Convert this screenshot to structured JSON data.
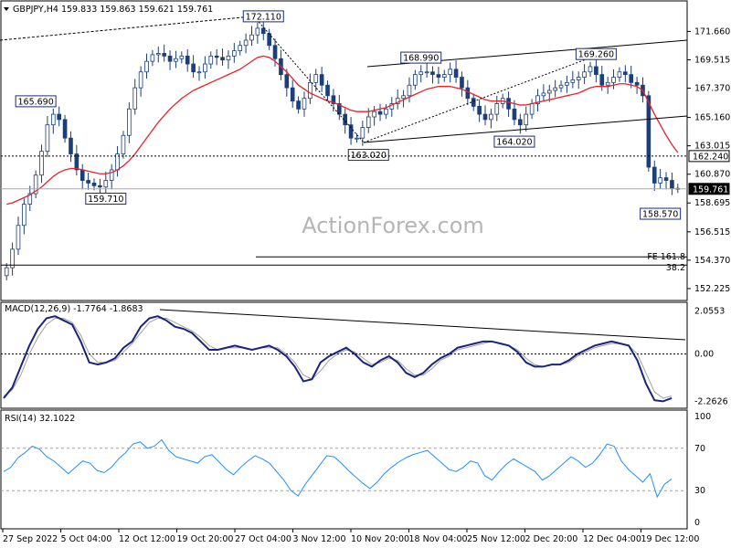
{
  "chart_data": [
    {
      "panel": "price",
      "type": "candlestick",
      "title": "GBPJPY,H4 159.833 159.863 159.621 159.761",
      "symbol": "GBPJPY",
      "timeframe": "H4",
      "ohlc_header": "159.833 159.863 159.621 159.761",
      "y_ticks": [
        "171.660",
        "169.515",
        "167.370",
        "165.160",
        "163.015",
        "160.870",
        "158.695",
        "156.515",
        "154.370",
        "152.225"
      ],
      "ylim": [
        151.6,
        173.0
      ],
      "current_price": "159.761",
      "level_162": "162.240",
      "pivot_labels": [
        {
          "text": "172.110",
          "x": 44,
          "y": 172.11
        },
        {
          "text": "165.690",
          "x": 5,
          "y": 165.69
        },
        {
          "text": "159.710",
          "x": 17,
          "y": 159.71
        },
        {
          "text": "163.020",
          "x": 62,
          "y": 163.02
        },
        {
          "text": "168.990",
          "x": 71,
          "y": 168.99
        },
        {
          "text": "164.020",
          "x": 87,
          "y": 164.02
        },
        {
          "text": "169.260",
          "x": 101,
          "y": 169.26
        },
        {
          "text": "158.570",
          "x": 112,
          "y": 158.57
        }
      ],
      "fe_label": "FE 161.8",
      "retrace_label": "38.2",
      "fe_level": 154.62,
      "retrace_level": 154.0,
      "close": [
        153.8,
        155.2,
        157.0,
        158.6,
        159.4,
        160.8,
        162.6,
        164.6,
        165.4,
        165.0,
        163.6,
        162.4,
        161.2,
        160.4,
        160.2,
        160.0,
        159.9,
        160.4,
        161.2,
        162.4,
        163.8,
        165.8,
        167.4,
        168.6,
        169.4,
        169.9,
        170.0,
        169.8,
        169.4,
        169.6,
        169.8,
        169.2,
        168.6,
        168.6,
        169.2,
        169.8,
        169.7,
        169.5,
        169.8,
        170.2,
        170.6,
        171.0,
        171.4,
        171.9,
        171.5,
        170.6,
        169.6,
        168.4,
        167.4,
        166.4,
        165.8,
        166.6,
        167.8,
        168.4,
        167.6,
        166.8,
        166.2,
        165.4,
        164.6,
        163.6,
        163.6,
        164.4,
        165.2,
        165.6,
        165.4,
        165.8,
        166.2,
        166.6,
        166.8,
        167.6,
        168.4,
        168.6,
        168.6,
        168.4,
        168.2,
        168.4,
        168.8,
        168.2,
        167.4,
        166.6,
        166.0,
        165.4,
        165.0,
        165.4,
        166.2,
        166.6,
        165.8,
        165.0,
        164.6,
        165.4,
        166.2,
        166.8,
        167.0,
        167.2,
        167.4,
        167.6,
        167.8,
        168.0,
        168.2,
        168.6,
        169.0,
        168.4,
        167.6,
        167.8,
        168.2,
        168.6,
        168.4,
        167.8,
        167.6,
        166.8,
        161.4,
        160.2,
        160.6,
        160.4,
        159.8,
        159.8
      ],
      "ma_start": 0,
      "ma_values": [
        158.6,
        158.7,
        158.9,
        159.1,
        159.3,
        159.6,
        159.9,
        160.3,
        160.7,
        161.0,
        161.2,
        161.3,
        161.3,
        161.2,
        161.1,
        161.0,
        160.9,
        160.9,
        161.0,
        161.2,
        161.5,
        161.9,
        162.4,
        163.0,
        163.6,
        164.2,
        164.8,
        165.3,
        165.8,
        166.2,
        166.6,
        166.9,
        167.2,
        167.4,
        167.6,
        167.8,
        168.0,
        168.2,
        168.4,
        168.6,
        168.8,
        169.1,
        169.4,
        169.7,
        169.8,
        169.7,
        169.4,
        169.0,
        168.6,
        168.1,
        167.6,
        167.3,
        167.0,
        166.8,
        166.6,
        166.4,
        166.3,
        166.1,
        165.9,
        165.7,
        165.6,
        165.6,
        165.6,
        165.7,
        165.8,
        165.9,
        166.1,
        166.3,
        166.5,
        166.7,
        166.9,
        167.1,
        167.3,
        167.4,
        167.5,
        167.5,
        167.5,
        167.4,
        167.3,
        167.1,
        166.9,
        166.7,
        166.5,
        166.4,
        166.4,
        166.4,
        166.3,
        166.2,
        166.1,
        166.1,
        166.2,
        166.3,
        166.4,
        166.5,
        166.6,
        166.7,
        166.8,
        166.9,
        167.0,
        167.2,
        167.4,
        167.5,
        167.5,
        167.5,
        167.6,
        167.7,
        167.7,
        167.6,
        167.5,
        167.2,
        166.3,
        165.4,
        164.6,
        163.8,
        163.1,
        162.5
      ]
    },
    {
      "panel": "macd",
      "type": "line",
      "label": "MACD(12,26,9) -1.7764 -1.8683",
      "y_ticks": [
        "2.0553",
        "0.00",
        "-2.2626"
      ],
      "ylim": [
        -2.45,
        2.2
      ],
      "series": [
        {
          "name": "MACD",
          "values": [
            -2.1,
            -1.6,
            -0.6,
            0.4,
            1.2,
            1.7,
            1.8,
            1.6,
            1.4,
            0.6,
            -0.4,
            -0.5,
            -0.4,
            -0.2,
            0.3,
            0.6,
            1.3,
            1.7,
            1.8,
            1.6,
            1.3,
            1.2,
            1.0,
            0.6,
            0.2,
            0.2,
            0.3,
            0.4,
            0.3,
            0.2,
            0.3,
            0.4,
            0.2,
            -0.1,
            -0.6,
            -1.3,
            -1.2,
            -0.4,
            -0.1,
            0.1,
            0.3,
            0.0,
            -0.4,
            -0.6,
            -0.3,
            -0.1,
            -0.4,
            -0.9,
            -1.1,
            -0.9,
            -0.5,
            -0.2,
            0.0,
            0.3,
            0.4,
            0.5,
            0.6,
            0.6,
            0.5,
            0.4,
            0.1,
            -0.4,
            -0.6,
            -0.6,
            -0.5,
            -0.5,
            -0.3,
            0.0,
            0.2,
            0.4,
            0.5,
            0.6,
            0.5,
            0.4,
            -0.3,
            -1.4,
            -2.2,
            -2.25,
            -2.1
          ]
        },
        {
          "name": "Signal",
          "values": [
            -2.0,
            -1.7,
            -1.0,
            0.0,
            0.8,
            1.4,
            1.7,
            1.7,
            1.5,
            0.9,
            0.0,
            -0.4,
            -0.4,
            -0.3,
            0.1,
            0.5,
            1.0,
            1.5,
            1.7,
            1.7,
            1.5,
            1.3,
            1.1,
            0.8,
            0.4,
            0.2,
            0.3,
            0.3,
            0.3,
            0.2,
            0.3,
            0.3,
            0.3,
            0.0,
            -0.4,
            -1.0,
            -1.2,
            -0.8,
            -0.3,
            0.0,
            0.2,
            0.1,
            -0.2,
            -0.5,
            -0.4,
            -0.2,
            -0.3,
            -0.7,
            -1.0,
            -1.0,
            -0.7,
            -0.3,
            -0.1,
            0.2,
            0.3,
            0.4,
            0.5,
            0.6,
            0.5,
            0.4,
            0.2,
            -0.2,
            -0.5,
            -0.6,
            -0.5,
            -0.5,
            -0.4,
            -0.1,
            0.1,
            0.3,
            0.4,
            0.5,
            0.5,
            0.4,
            0.0,
            -0.9,
            -1.8,
            -2.1,
            -2.0
          ]
        }
      ]
    },
    {
      "panel": "rsi",
      "type": "line",
      "label": "RSI(14) 32.1022",
      "y_ticks": [
        "100",
        "70",
        "30",
        "0"
      ],
      "ylim": [
        0,
        100
      ],
      "guides": [
        70,
        30
      ],
      "series": [
        {
          "name": "RSI",
          "values": [
            48,
            52,
            61,
            66,
            72,
            69,
            62,
            58,
            52,
            46,
            52,
            58,
            56,
            49,
            47,
            52,
            60,
            66,
            74,
            76,
            70,
            72,
            78,
            68,
            62,
            60,
            58,
            56,
            62,
            64,
            57,
            50,
            45,
            52,
            58,
            63,
            60,
            56,
            48,
            40,
            30,
            25,
            36,
            45,
            54,
            63,
            62,
            56,
            49,
            43,
            37,
            32,
            38,
            46,
            52,
            57,
            61,
            64,
            66,
            68,
            62,
            56,
            50,
            48,
            52,
            58,
            56,
            44,
            40,
            48,
            55,
            60,
            56,
            52,
            48,
            40,
            44,
            50,
            56,
            62,
            58,
            52,
            56,
            64,
            74,
            72,
            58,
            50,
            44,
            38,
            46,
            24,
            36,
            41
          ]
        }
      ]
    }
  ],
  "watermark": "ActionForex.com",
  "x_axis": {
    "labels": [
      "27 Sep 2022",
      "5 Oct 04:00",
      "12 Oct 12:00",
      "19 Oct 20:00",
      "27 Oct 04:00",
      "3 Nov 12:00",
      "10 Nov 20:00",
      "18 Nov 04:00",
      "25 Nov 12:00",
      "2 Dec 20:00",
      "12 Dec 04:00",
      "19 Dec 12:00"
    ],
    "label_candles": [
      0,
      14,
      28,
      42,
      56,
      70,
      84,
      98,
      112,
      126,
      140,
      154
    ]
  },
  "colors": {
    "bull_bear": "#1a3f7a",
    "ma": "#e3242b",
    "macd": "#1a237e",
    "signal": "#a0a0a0",
    "rsi": "#1e90ff",
    "trend": "#000000",
    "watermark": "#b0b0b0"
  }
}
